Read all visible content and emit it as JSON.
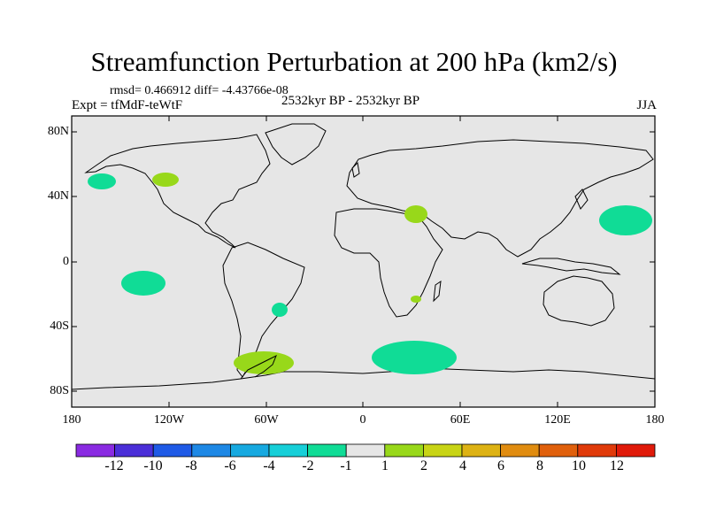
{
  "title": "Streamfunction Perturbation at 200 hPa (km2/s)",
  "stats": "rmsd= 0.466912 diff= -4.43766e-08",
  "experiment": "Expt = tfMdF-teWtF",
  "time_range": "2532kyr BP - 2532kyr BP",
  "season": "JJA",
  "lat_labels": [
    "80N",
    "40N",
    "0",
    "40S",
    "80S"
  ],
  "lon_labels": [
    "180",
    "120W",
    "60W",
    "0",
    "60E",
    "120E",
    "180"
  ],
  "colorbar": {
    "labels": [
      "-12",
      "-10",
      "-8",
      "-6",
      "-4",
      "-2",
      "-1",
      "1",
      "2",
      "4",
      "6",
      "8",
      "10",
      "12"
    ],
    "colors": [
      "#8a2be2",
      "#4b2fd8",
      "#1f5ae6",
      "#1e88e5",
      "#17a9e0",
      "#17cfd8",
      "#10dc96",
      "#e6e6e6",
      "#98d81a",
      "#c8d416",
      "#ddb214",
      "#e08c10",
      "#e0600c",
      "#e03a0a",
      "#e01a0a"
    ]
  },
  "colors": {
    "ocean": "#e6e6e6",
    "neg_anomaly": "#10dc96",
    "pos_anomaly": "#98d81a"
  }
}
